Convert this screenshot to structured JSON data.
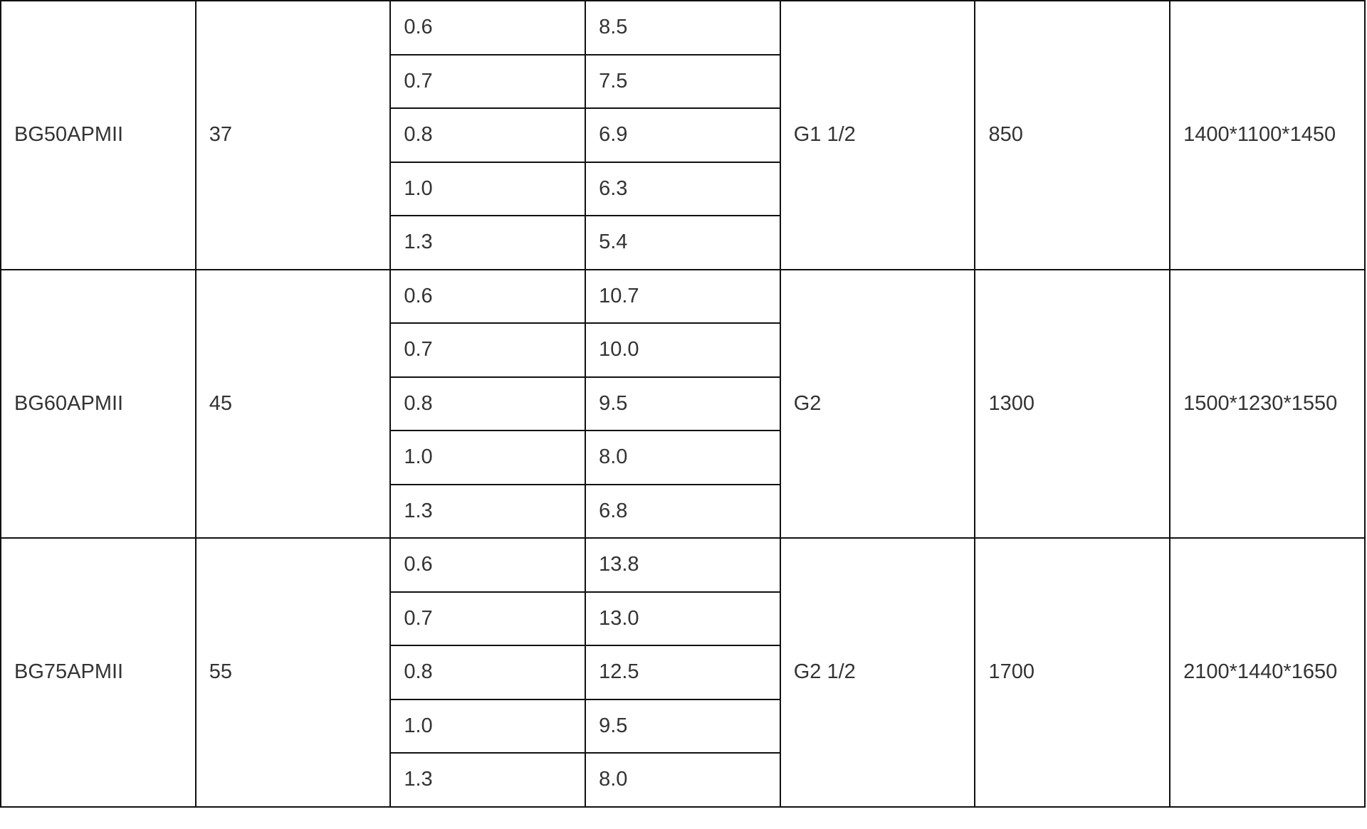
{
  "rows": [
    {
      "model": "BG50APMII",
      "power": "37",
      "pressures": [
        "0.6",
        "0.7",
        "0.8",
        "1.0",
        "1.3"
      ],
      "flows": [
        "8.5",
        "7.5",
        "6.9",
        "6.3",
        "5.4"
      ],
      "outlet": "G1 1/2",
      "weight": "850",
      "dimensions": "1400*1100*1450"
    },
    {
      "model": "BG60APMII",
      "power": "45",
      "pressures": [
        "0.6",
        "0.7",
        "0.8",
        "1.0",
        "1.3"
      ],
      "flows": [
        "10.7",
        "10.0",
        "9.5",
        "8.0",
        "6.8"
      ],
      "outlet": "G2",
      "weight": "1300",
      "dimensions": "1500*1230*1550"
    },
    {
      "model": "BG75APMII",
      "power": "55",
      "pressures": [
        "0.6",
        "0.7",
        "0.8",
        "1.0",
        "1.3"
      ],
      "flows": [
        "13.8",
        "13.0",
        "12.5",
        "9.5",
        "8.0"
      ],
      "outlet": "G2 1/2",
      "weight": "1700",
      "dimensions": "2100*1440*1650"
    }
  ]
}
